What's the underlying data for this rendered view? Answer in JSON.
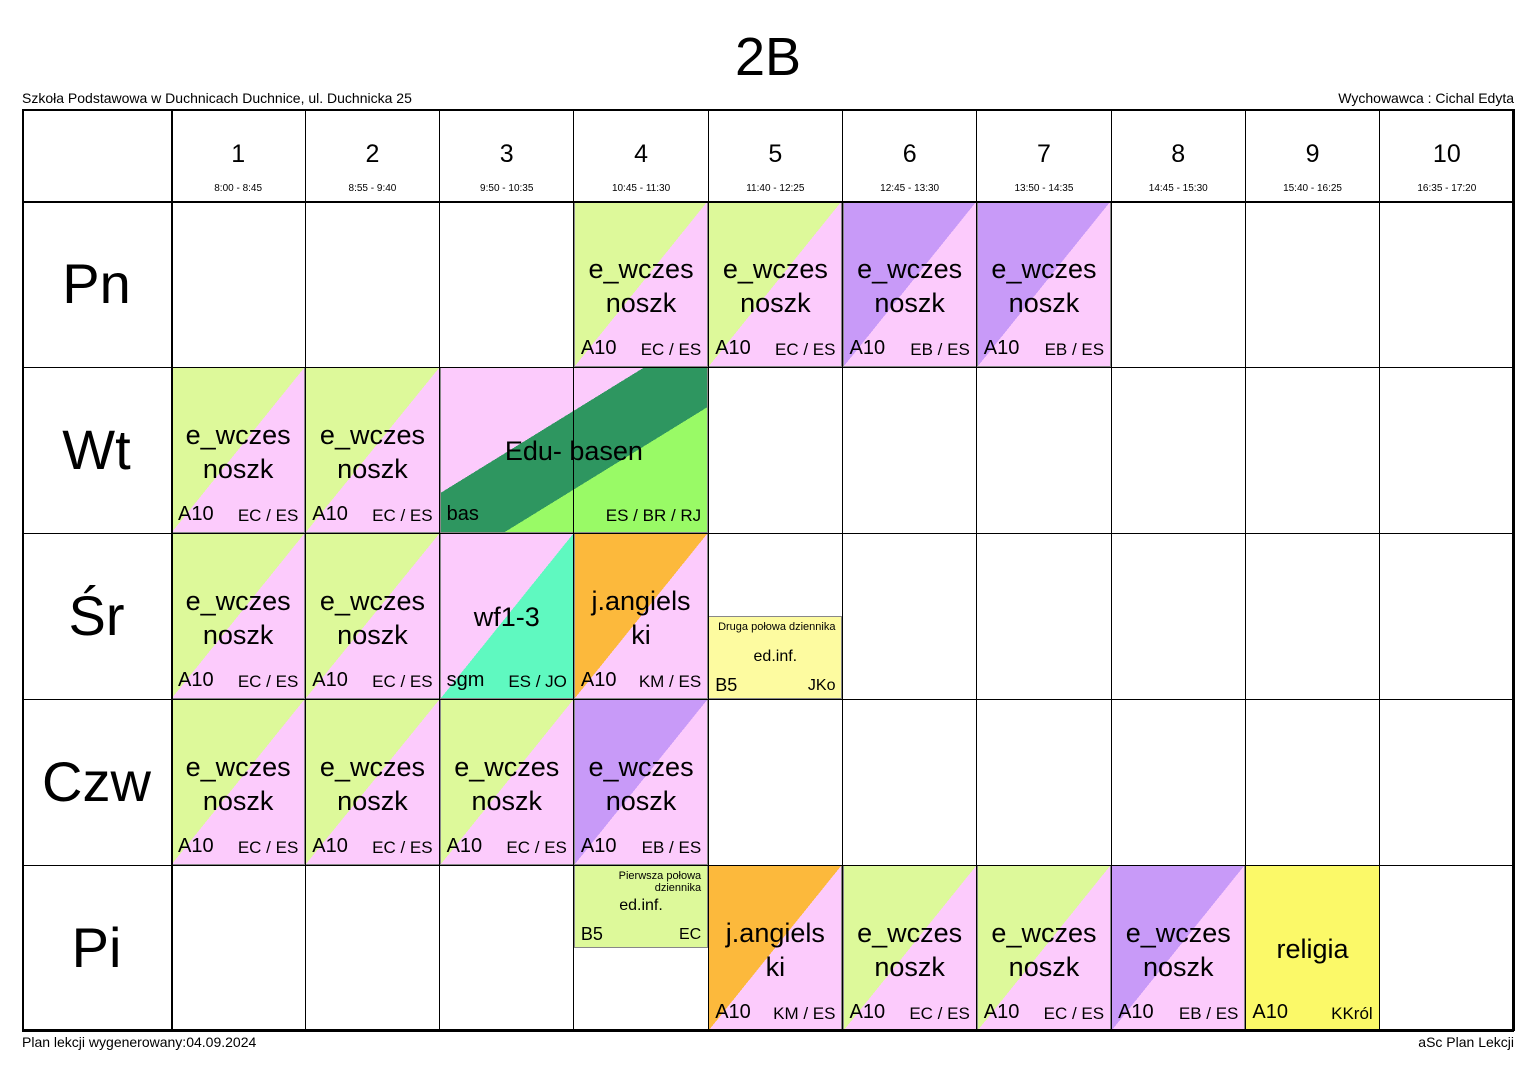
{
  "header": {
    "title": "2B",
    "school": "Szkoła Podstawowa w Duchnicach Duchnice, ul. Duchnicka 25",
    "form_teacher": "Wychowawca : Cichal Edyta"
  },
  "periods": [
    {
      "number": 1,
      "time": "8:00 - 8:45"
    },
    {
      "number": 2,
      "time": "8:55 - 9:40"
    },
    {
      "number": 3,
      "time": "9:50 - 10:35"
    },
    {
      "number": 4,
      "time": "10:45 - 11:30"
    },
    {
      "number": 5,
      "time": "11:40 - 12:25"
    },
    {
      "number": 6,
      "time": "12:45 - 13:30"
    },
    {
      "number": 7,
      "time": "13:50 - 14:35"
    },
    {
      "number": 8,
      "time": "14:45 - 15:30"
    },
    {
      "number": 9,
      "time": "15:40 - 16:25"
    },
    {
      "number": 10,
      "time": "16:35 - 17:20"
    }
  ],
  "days": [
    {
      "name": "Pn",
      "lessons": [
        {
          "periods": [
            4
          ],
          "subject": [
            "e_wczes",
            "noszk"
          ],
          "room": "A10",
          "teachers": "EC / ES",
          "colors": [
            "#ddf99a",
            "#fccbfc"
          ]
        },
        {
          "periods": [
            5
          ],
          "subject": [
            "e_wczes",
            "noszk"
          ],
          "room": "A10",
          "teachers": "EC / ES",
          "colors": [
            "#ddf99a",
            "#fccbfc"
          ]
        },
        {
          "periods": [
            6
          ],
          "subject": [
            "e_wczes",
            "noszk"
          ],
          "room": "A10",
          "teachers": "EB / ES",
          "colors": [
            "#c89af8",
            "#fccbfc"
          ]
        },
        {
          "periods": [
            7
          ],
          "subject": [
            "e_wczes",
            "noszk"
          ],
          "room": "A10",
          "teachers": "EB / ES",
          "colors": [
            "#c89af8",
            "#fccbfc"
          ]
        }
      ]
    },
    {
      "name": "Wt",
      "lessons": [
        {
          "periods": [
            1
          ],
          "subject": [
            "e_wczes",
            "noszk"
          ],
          "room": "A10",
          "teachers": "EC / ES",
          "colors": [
            "#ddf99a",
            "#fccbfc"
          ]
        },
        {
          "periods": [
            2
          ],
          "subject": [
            "e_wczes",
            "noszk"
          ],
          "room": "A10",
          "teachers": "EC / ES",
          "colors": [
            "#ddf99a",
            "#fccbfc"
          ]
        },
        {
          "periods": [
            3,
            4
          ],
          "subject": [
            "Edu- basen"
          ],
          "room": "bas",
          "teachers": "ES / BR / RJ",
          "colors": [
            "#fccbfc",
            "#2e9660",
            "#99fa66"
          ]
        }
      ]
    },
    {
      "name": "Śr",
      "lessons": [
        {
          "periods": [
            1
          ],
          "subject": [
            "e_wczes",
            "noszk"
          ],
          "room": "A10",
          "teachers": "EC / ES",
          "colors": [
            "#ddf99a",
            "#fccbfc"
          ]
        },
        {
          "periods": [
            2
          ],
          "subject": [
            "e_wczes",
            "noszk"
          ],
          "room": "A10",
          "teachers": "EC / ES",
          "colors": [
            "#ddf99a",
            "#fccbfc"
          ]
        },
        {
          "periods": [
            3
          ],
          "subject": [
            "wf1-3"
          ],
          "room": "sgm",
          "teachers": "ES / JO",
          "colors": [
            "#fccbfc",
            "#5ff9c0"
          ]
        },
        {
          "periods": [
            4
          ],
          "subject": [
            "j.angiels",
            "ki"
          ],
          "room": "A10",
          "teachers": "KM / ES",
          "colors": [
            "#fcb93c",
            "#fccbfc"
          ]
        },
        {
          "periods": [
            5
          ],
          "half": "bottom",
          "note": "Druga połowa dziennika",
          "subject": [
            "ed.inf."
          ],
          "room": "B5",
          "teachers": "JKo",
          "colors": [
            "#fdfba0"
          ]
        }
      ]
    },
    {
      "name": "Czw",
      "lessons": [
        {
          "periods": [
            1
          ],
          "subject": [
            "e_wczes",
            "noszk"
          ],
          "room": "A10",
          "teachers": "EC / ES",
          "colors": [
            "#ddf99a",
            "#fccbfc"
          ]
        },
        {
          "periods": [
            2
          ],
          "subject": [
            "e_wczes",
            "noszk"
          ],
          "room": "A10",
          "teachers": "EC / ES",
          "colors": [
            "#ddf99a",
            "#fccbfc"
          ]
        },
        {
          "periods": [
            3
          ],
          "subject": [
            "e_wczes",
            "noszk"
          ],
          "room": "A10",
          "teachers": "EC / ES",
          "colors": [
            "#ddf99a",
            "#fccbfc"
          ]
        },
        {
          "periods": [
            4
          ],
          "subject": [
            "e_wczes",
            "noszk"
          ],
          "room": "A10",
          "teachers": "EB / ES",
          "colors": [
            "#c89af8",
            "#fccbfc"
          ]
        }
      ]
    },
    {
      "name": "Pi",
      "lessons": [
        {
          "periods": [
            4
          ],
          "half": "top",
          "note": "Pierwsza połowa dziennika",
          "subject": [
            "ed.inf."
          ],
          "room": "B5",
          "teachers": "EC",
          "colors": [
            "#ddf99a"
          ]
        },
        {
          "periods": [
            5
          ],
          "subject": [
            "j.angiels",
            "ki"
          ],
          "room": "A10",
          "teachers": "KM / ES",
          "colors": [
            "#fcb93c",
            "#fccbfc"
          ]
        },
        {
          "periods": [
            6
          ],
          "subject": [
            "e_wczes",
            "noszk"
          ],
          "room": "A10",
          "teachers": "EC / ES",
          "colors": [
            "#ddf99a",
            "#fccbfc"
          ]
        },
        {
          "periods": [
            7
          ],
          "subject": [
            "e_wczes",
            "noszk"
          ],
          "room": "A10",
          "teachers": "EC / ES",
          "colors": [
            "#ddf99a",
            "#fccbfc"
          ]
        },
        {
          "periods": [
            8
          ],
          "subject": [
            "e_wczes",
            "noszk"
          ],
          "room": "A10",
          "teachers": "EB / ES",
          "colors": [
            "#c89af8",
            "#fccbfc"
          ]
        },
        {
          "periods": [
            9
          ],
          "subject": [
            "religia"
          ],
          "room": "A10",
          "teachers": "KKról",
          "colors": [
            "#fbf968"
          ]
        }
      ]
    }
  ],
  "footer": {
    "generated": "Plan lekcji wygenerowany:04.09.2024",
    "app": "aSc Plan Lekcji"
  }
}
